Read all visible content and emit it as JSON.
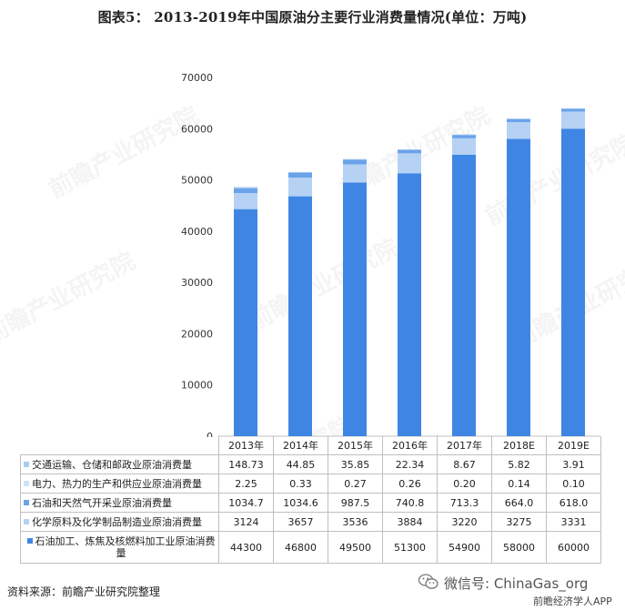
{
  "title": "图表5： 2013-2019年中国原油分主要行业消费量情况(单位：万吨)",
  "chart_data": {
    "type": "bar",
    "stacked": true,
    "categories": [
      "2013年",
      "2014年",
      "2015年",
      "2016年",
      "2017年",
      "2018E",
      "2019E"
    ],
    "ylim": [
      0,
      70000
    ],
    "yticks": [
      0,
      10000,
      20000,
      30000,
      40000,
      50000,
      60000,
      70000
    ],
    "grid": false,
    "legend": "table-left",
    "series": [
      {
        "name": "交通运输、仓储和邮政业原油消费量",
        "color": "#a9cbf2",
        "values": [
          "148.73",
          "44.85",
          "35.85",
          "22.34",
          "8.67",
          "5.82",
          "3.91"
        ]
      },
      {
        "name": "电力、热力的生产和供应业原油消费量",
        "color": "#cfe2f8",
        "values": [
          "2.25",
          "0.33",
          "0.27",
          "0.26",
          "0.20",
          "0.14",
          "0.10"
        ]
      },
      {
        "name": "石油和天然气开采业原油消费量",
        "color": "#6aa3ea",
        "values": [
          "1034.7",
          "1034.6",
          "987.5",
          "740.8",
          "713.3",
          "664.0",
          "618.0"
        ]
      },
      {
        "name": "化学原料及化学制品制造业原油消费量",
        "color": "#b5d2f4",
        "values": [
          "3124",
          "3657",
          "3536",
          "3884",
          "3220",
          "3275",
          "3331"
        ]
      },
      {
        "name": "石油加工、炼焦及核燃料加工业原油消费量",
        "color": "#3f86e4",
        "values": [
          "44300",
          "46800",
          "49500",
          "51300",
          "54900",
          "58000",
          "60000"
        ]
      }
    ]
  },
  "source": "资料来源：前瞻产业研究院整理",
  "wechat": "微信号: ChinaGas_org",
  "app_mark": "前瞻经济学人APP",
  "watermark": "前瞻产业研究院"
}
